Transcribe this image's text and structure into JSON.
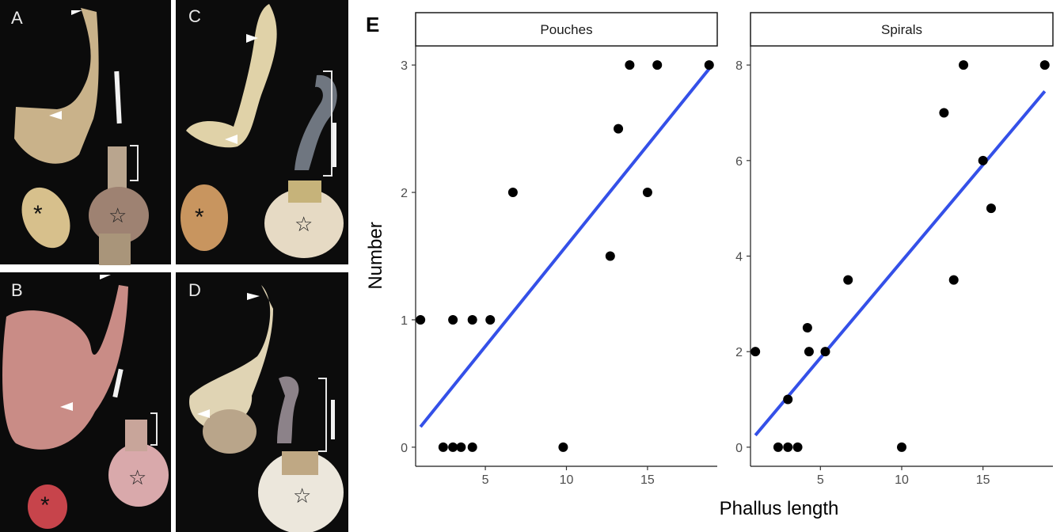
{
  "figure": {
    "photo_panels": [
      {
        "letter": "A"
      },
      {
        "letter": "B"
      },
      {
        "letter": "C"
      },
      {
        "letter": "D"
      }
    ],
    "photo_marks": {
      "testis": "*",
      "vesicle": "☆"
    },
    "panel_letter": "E"
  },
  "chart_data": {
    "type": "scatter",
    "xlabel": "Phallus length",
    "ylabel": "Number",
    "grid": false,
    "fit_line_color": "#3450E8",
    "point_color": "#000000",
    "facets": [
      {
        "title": "Pouches",
        "xlim": [
          0.7,
          19.3
        ],
        "ylim": [
          -0.15,
          3.15
        ],
        "x_ticks": [
          5,
          10,
          15
        ],
        "y_ticks": [
          0,
          1,
          2,
          3
        ],
        "points": [
          {
            "x": 1.0,
            "y": 1
          },
          {
            "x": 3.0,
            "y": 1
          },
          {
            "x": 4.2,
            "y": 1
          },
          {
            "x": 5.3,
            "y": 1
          },
          {
            "x": 2.4,
            "y": 0
          },
          {
            "x": 3.0,
            "y": 0
          },
          {
            "x": 3.5,
            "y": 0
          },
          {
            "x": 4.2,
            "y": 0
          },
          {
            "x": 9.8,
            "y": 0
          },
          {
            "x": 6.7,
            "y": 2
          },
          {
            "x": 12.7,
            "y": 1.5
          },
          {
            "x": 13.2,
            "y": 2.5
          },
          {
            "x": 13.9,
            "y": 3
          },
          {
            "x": 15.6,
            "y": 3
          },
          {
            "x": 15.0,
            "y": 2
          },
          {
            "x": 18.8,
            "y": 3
          }
        ],
        "fit": {
          "x": [
            1.0,
            18.8
          ],
          "y": [
            0.16,
            2.97
          ]
        }
      },
      {
        "title": "Spirals",
        "xlim": [
          0.7,
          19.3
        ],
        "ylim": [
          -0.4,
          8.4
        ],
        "x_ticks": [
          5,
          10,
          15
        ],
        "y_ticks": [
          0,
          2,
          4,
          6,
          8
        ],
        "points": [
          {
            "x": 1.0,
            "y": 2
          },
          {
            "x": 2.4,
            "y": 0
          },
          {
            "x": 3.0,
            "y": 0
          },
          {
            "x": 3.6,
            "y": 0
          },
          {
            "x": 3.0,
            "y": 1
          },
          {
            "x": 4.2,
            "y": 2.5
          },
          {
            "x": 4.3,
            "y": 2
          },
          {
            "x": 5.3,
            "y": 2
          },
          {
            "x": 6.7,
            "y": 3.5
          },
          {
            "x": 10.0,
            "y": 0
          },
          {
            "x": 12.6,
            "y": 7
          },
          {
            "x": 13.2,
            "y": 3.5
          },
          {
            "x": 13.8,
            "y": 8
          },
          {
            "x": 15.0,
            "y": 6
          },
          {
            "x": 15.5,
            "y": 5
          },
          {
            "x": 18.8,
            "y": 8
          }
        ],
        "fit": {
          "x": [
            1.0,
            18.8
          ],
          "y": [
            0.25,
            7.45
          ]
        }
      }
    ]
  }
}
